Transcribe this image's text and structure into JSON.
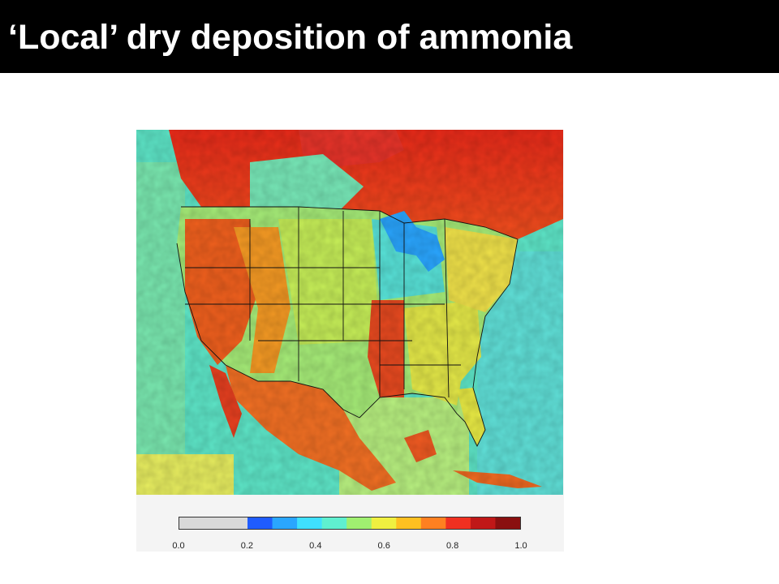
{
  "slide": {
    "title": "‘Local’ dry deposition of ammonia"
  },
  "map": {
    "colorbar": {
      "ticks": [
        "0.0",
        "0.2",
        "0.4",
        "0.6",
        "0.8",
        "1.0"
      ],
      "min": 0.0,
      "max": 1.0,
      "no_data_below": 0.2,
      "no_data_color": "#d9d9d9",
      "colors": [
        "#1f5cff",
        "#2aa6ff",
        "#3fe0ff",
        "#5ff0d0",
        "#a0f070",
        "#f0f040",
        "#ffc020",
        "#ff8020",
        "#f03020",
        "#c01818",
        "#8a1010"
      ]
    },
    "ocean_color": "#47e0e0",
    "land_regions": [
      {
        "name": "northern-canada",
        "level": 0.9
      },
      {
        "name": "western-mountains",
        "level": 0.85
      },
      {
        "name": "great-plains",
        "level": 0.6
      },
      {
        "name": "midwest",
        "level": 0.5
      },
      {
        "name": "mississippi-valley",
        "level": 0.88
      },
      {
        "name": "southeast",
        "level": 0.62
      },
      {
        "name": "northeast",
        "level": 0.55
      },
      {
        "name": "mexico",
        "level": 0.8
      },
      {
        "name": "great-lakes",
        "level": 0.3
      },
      {
        "name": "gulf-of-mexico",
        "level": 0.55
      },
      {
        "name": "pacific-ocean",
        "level": 0.42
      },
      {
        "name": "atlantic-ocean",
        "level": 0.45
      }
    ]
  }
}
